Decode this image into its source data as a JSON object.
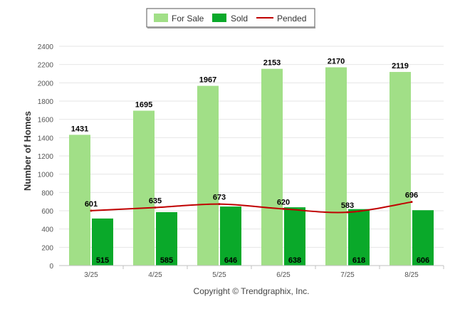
{
  "chart_data": {
    "type": "bar",
    "title": "",
    "xlabel": "",
    "ylabel": "Number of Homes",
    "ylim": [
      0,
      2400
    ],
    "yticks": [
      0,
      200,
      400,
      600,
      800,
      1000,
      1200,
      1400,
      1600,
      1800,
      2000,
      2200,
      2400
    ],
    "grid": true,
    "legend_position": "top-center",
    "categories": [
      "3/25",
      "4/25",
      "5/25",
      "6/25",
      "7/25",
      "8/25"
    ],
    "series": [
      {
        "name": "For Sale",
        "kind": "bar",
        "color": "#a1df87",
        "values": [
          1431,
          1695,
          1967,
          2153,
          2170,
          2119
        ]
      },
      {
        "name": "Sold",
        "kind": "bar",
        "color": "#0aa92a",
        "values": [
          515,
          585,
          646,
          638,
          618,
          606
        ]
      },
      {
        "name": "Pended",
        "kind": "line",
        "color": "#c00000",
        "values": [
          601,
          635,
          673,
          620,
          583,
          696
        ]
      }
    ],
    "footer": "Copyright © Trendgraphix, Inc."
  }
}
